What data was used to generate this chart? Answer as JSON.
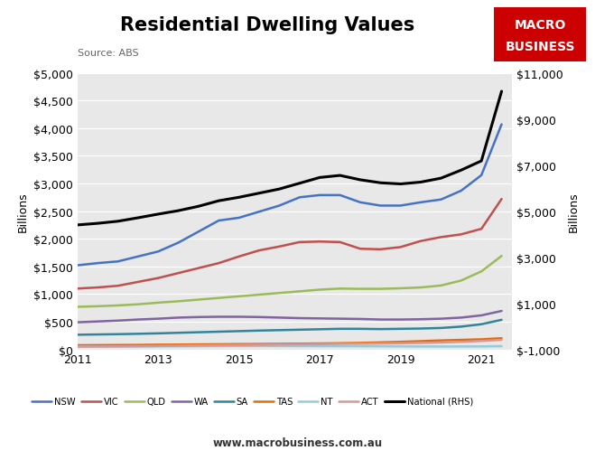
{
  "title": "Residential Dwelling Values",
  "source": "Source: ABS",
  "ylabel_left": "Billions",
  "ylabel_right": "Billions",
  "website": "www.macrobusiness.com.au",
  "background_color": "#e8e8e8",
  "years": [
    2011,
    2011.5,
    2012,
    2012.5,
    2013,
    2013.5,
    2014,
    2014.5,
    2015,
    2015.5,
    2016,
    2016.5,
    2017,
    2017.5,
    2018,
    2018.5,
    2019,
    2019.5,
    2020,
    2020.5,
    2021,
    2021.5
  ],
  "series": {
    "NSW": {
      "color": "#4472C4",
      "values": [
        1520,
        1560,
        1590,
        1680,
        1770,
        1930,
        2130,
        2330,
        2380,
        2490,
        2600,
        2750,
        2790,
        2790,
        2660,
        2600,
        2600,
        2660,
        2710,
        2870,
        3150,
        4070
      ]
    },
    "VIC": {
      "color": "#C0504D",
      "values": [
        1100,
        1120,
        1150,
        1220,
        1290,
        1380,
        1470,
        1560,
        1680,
        1790,
        1860,
        1940,
        1950,
        1940,
        1820,
        1810,
        1850,
        1960,
        2030,
        2080,
        2180,
        2720
      ]
    },
    "QLD": {
      "color": "#9BBB59",
      "values": [
        770,
        780,
        795,
        815,
        845,
        870,
        900,
        930,
        960,
        990,
        1020,
        1050,
        1080,
        1100,
        1095,
        1095,
        1105,
        1120,
        1155,
        1245,
        1410,
        1690
      ]
    },
    "WA": {
      "color": "#8064A2",
      "values": [
        490,
        505,
        520,
        540,
        555,
        575,
        585,
        590,
        590,
        585,
        575,
        565,
        560,
        555,
        550,
        540,
        540,
        545,
        555,
        575,
        615,
        695
      ]
    },
    "SA": {
      "color": "#31849B",
      "values": [
        265,
        270,
        275,
        282,
        290,
        300,
        310,
        320,
        330,
        340,
        348,
        356,
        364,
        372,
        372,
        367,
        372,
        377,
        387,
        412,
        455,
        535
      ]
    },
    "TAS": {
      "color": "#E36C09",
      "values": [
        75,
        77,
        79,
        81,
        85,
        87,
        90,
        93,
        96,
        98,
        101,
        104,
        107,
        112,
        118,
        127,
        137,
        149,
        162,
        172,
        182,
        202
      ]
    },
    "NT": {
      "color": "#92CDDC",
      "values": [
        50,
        51,
        52,
        53,
        54,
        56,
        58,
        60,
        61,
        62,
        61,
        60,
        59,
        58,
        57,
        56,
        54,
        53,
        52,
        53,
        54,
        58
      ]
    },
    "ACT": {
      "color": "#D99694",
      "values": [
        50,
        52,
        55,
        58,
        62,
        67,
        71,
        75,
        79,
        83,
        87,
        91,
        95,
        100,
        103,
        107,
        111,
        117,
        125,
        137,
        153,
        173
      ]
    },
    "National (RHS)": {
      "color": "#000000",
      "values": [
        4400,
        4470,
        4560,
        4710,
        4870,
        5020,
        5210,
        5450,
        5600,
        5780,
        5960,
        6210,
        6460,
        6550,
        6360,
        6230,
        6180,
        6260,
        6430,
        6780,
        7180,
        10200
      ]
    }
  },
  "ylim_left": [
    0,
    5000
  ],
  "ylim_right": [
    -1000,
    11000
  ],
  "yticks_left": [
    0,
    500,
    1000,
    1500,
    2000,
    2500,
    3000,
    3500,
    4000,
    4500,
    5000
  ],
  "yticks_right": [
    -1000,
    1000,
    3000,
    5000,
    7000,
    9000,
    11000
  ],
  "xticks": [
    2011,
    2013,
    2015,
    2017,
    2019,
    2021
  ],
  "xlim": [
    2011,
    2021.75
  ]
}
